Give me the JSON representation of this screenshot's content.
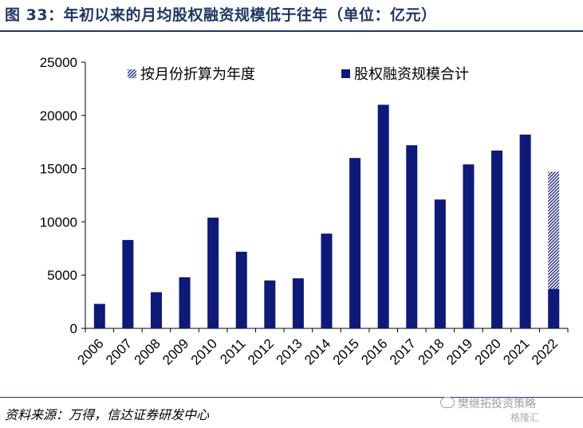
{
  "figure": {
    "title": "图  33：年初以来的月均股权融资规模低于往年（单位：亿元）",
    "source": "资料来源：万得，信达证券研发中心",
    "watermark": "樊继拓投资策略",
    "watermark2": "格隆汇"
  },
  "colors": {
    "title": "#1f3864",
    "bar": "#0d1a7a",
    "axis": "#000000"
  },
  "chart_data": {
    "type": "bar",
    "categories": [
      "2006",
      "2007",
      "2008",
      "2009",
      "2010",
      "2011",
      "2012",
      "2013",
      "2014",
      "2015",
      "2016",
      "2017",
      "2018",
      "2019",
      "2020",
      "2021",
      "2022"
    ],
    "series": [
      {
        "name": "股权融资规模合计",
        "values": [
          2300,
          8300,
          3400,
          4800,
          10400,
          7200,
          4500,
          4700,
          8900,
          16000,
          21000,
          17200,
          12100,
          15400,
          16700,
          18200,
          3700
        ]
      },
      {
        "name": "按月份折算为年度",
        "pattern": "hatched",
        "values": [
          null,
          null,
          null,
          null,
          null,
          null,
          null,
          null,
          null,
          null,
          null,
          null,
          null,
          null,
          null,
          null,
          14700
        ]
      }
    ],
    "yticks": [
      0,
      5000,
      10000,
      15000,
      20000,
      25000
    ],
    "ylim": [
      0,
      25000
    ],
    "legend_position": "top"
  }
}
